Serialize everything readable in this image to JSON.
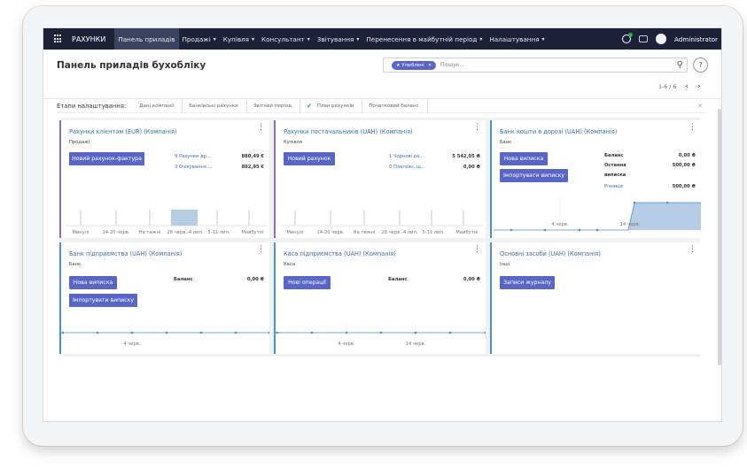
{
  "navbar": {
    "brand": "РАХУНКИ",
    "items": [
      {
        "label": "Панель приладів",
        "caret": false
      },
      {
        "label": "Продажі",
        "caret": true
      },
      {
        "label": "Купівля",
        "caret": true
      },
      {
        "label": "Консультант",
        "caret": true
      },
      {
        "label": "Звітування",
        "caret": true
      },
      {
        "label": "Перенесення в майбутній період",
        "caret": true
      },
      {
        "label": "Налаштування",
        "caret": true
      }
    ],
    "user": "Administrator",
    "caret_glyph": "▾"
  },
  "control_panel": {
    "title": "Панель приладів бухобліку",
    "facet_label": "★ Улюблені",
    "facet_remove": "✕",
    "search_placeholder": "Пошук...",
    "search_icon_glyph": "⚲",
    "help_glyph": "?",
    "pager_value": "1-6 / 6",
    "pager_prev": "‹",
    "pager_next": "›"
  },
  "onboarding": {
    "title": "Етапи налаштування:",
    "steps": [
      {
        "label": "Дані компанії",
        "done": false
      },
      {
        "label": "Банківські рахунки",
        "done": false
      },
      {
        "label": "Звітний період",
        "done": false
      },
      {
        "label": "План рахунків",
        "done": true
      },
      {
        "label": "Початковий баланс",
        "done": false
      }
    ],
    "check_glyph": "✔",
    "close_glyph": "✕"
  },
  "cards": {
    "customer": {
      "title": "Рахунки клієнтам (EUR) (Компанія)",
      "subtitle": "Продажі",
      "button": "Новий рахунок-фактура",
      "rows": [
        {
          "label": "9 Рахунки др...",
          "value": "880,49 €"
        },
        {
          "label": "3 Очікування ...",
          "value": "892,95 €"
        }
      ],
      "chart_labels": [
        "Минулі",
        "14-20 черв.",
        "На тижні",
        "28 черв.-4 лип.",
        "5-11 лип.",
        "Майбутні"
      ]
    },
    "vendor": {
      "title": "Рахунки постачальників (UAH) (Компанія)",
      "subtitle": "Купівля",
      "button": "Новий рахунок",
      "rows": [
        {
          "label": "1 Чорнові ра...",
          "value": "5 542,05 ₴"
        },
        {
          "label": "0 Платежі, щ...",
          "value": "0,00 ₴"
        }
      ],
      "chart_labels": [
        "Минулі",
        "14-20 черв.",
        "На тижні",
        "28 черв.-4 лип.",
        "5-11 лип.",
        "Майбутні"
      ]
    },
    "transit": {
      "title": "Банк кошти в дорозі (UAH) (Компанія)",
      "subtitle": "Банк",
      "buttons": [
        "Нова виписка",
        "Імпортувати виписку"
      ],
      "rows": [
        {
          "label": "Баланс",
          "value": "0,00 ₴"
        },
        {
          "label": "Остання",
          "value": "500,00 ₴"
        },
        {
          "label": "виписка",
          "value": ""
        },
        {
          "label": "Різниця",
          "value": "500,00 ₴"
        }
      ],
      "chart_labels": [
        "4 черв.",
        "14 черв."
      ]
    },
    "bank": {
      "title": "Банк підприємства (UAH) (Компанія)",
      "subtitle": "Банк",
      "buttons": [
        "Нова виписка",
        "Імпортувати виписку"
      ],
      "rows": [
        {
          "label": "Баланс",
          "value": "0,00 ₴"
        }
      ],
      "chart_labels": [
        "4 черв."
      ]
    },
    "cash": {
      "title": "Каса підприємства (UAH) (Компанія)",
      "subtitle": "Каса",
      "button": "Нові операції",
      "rows": [
        {
          "label": "Баланс",
          "value": "0,00 ₴"
        }
      ],
      "chart_labels": [
        "4 черв.",
        "14 черв."
      ]
    },
    "assets": {
      "title": "Основні засоби (UAH) (Компанія)",
      "subtitle": "Інші",
      "button": "Записи журналу"
    },
    "kebab_glyph": "⋮"
  },
  "colors": {
    "navbar": "#1c2339",
    "button": "#5a66c6",
    "link": "#3a6ea8",
    "chart_fill": "#b7cde6",
    "purple_border": "#8f6bc4",
    "blue_border": "#4a90d9"
  }
}
